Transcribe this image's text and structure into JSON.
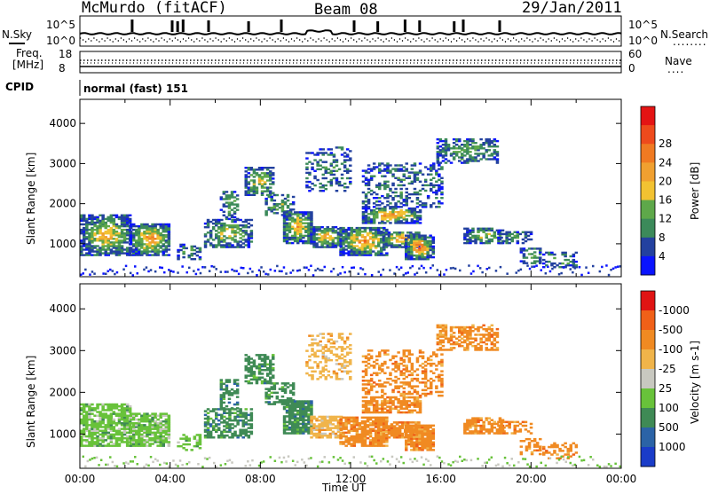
{
  "header": {
    "title_left": "McMurdo (fitACF)",
    "title_mid": "Beam 08",
    "title_right": "29/Jan/2011"
  },
  "noise_panel": {
    "left_label": "N.Sky",
    "right_label": "N.Search",
    "left_ticks": [
      "10^5",
      "10^0"
    ],
    "right_ticks": [
      "10^5",
      "10^0"
    ],
    "right_legend": "........"
  },
  "freq_panel": {
    "left_label_line1": "Freq.",
    "left_label_line2": "[MHz]",
    "left_ticks": [
      "18",
      "8"
    ],
    "right_label": "Nave",
    "right_ticks": [
      "60",
      "0"
    ],
    "right_legend": "...."
  },
  "cpid": {
    "label": "CPID",
    "value": "normal (fast) 151"
  },
  "chart_data": [
    {
      "type": "heatmap",
      "name": "power",
      "ylabel": "Slant Range [km]",
      "yticks": [
        1000,
        2000,
        3000,
        4000
      ],
      "ylim": [
        180,
        4600
      ],
      "xlim_hours": [
        0,
        24
      ],
      "colorbar_label": "Power [dB]",
      "colorbar_ticks": [
        "4",
        "8",
        "12",
        "16",
        "20",
        "24",
        "28"
      ],
      "colorbar_colors": [
        "#0a14ff",
        "#23419f",
        "#3c8a5a",
        "#5ea84a",
        "#f2c232",
        "#f0a030",
        "#f07a22",
        "#ee4a1c",
        "#e41414"
      ]
    },
    {
      "type": "heatmap",
      "name": "velocity",
      "ylabel": "Slant Range [km]",
      "yticks": [
        1000,
        2000,
        3000,
        4000
      ],
      "ylim": [
        180,
        4600
      ],
      "xlim_hours": [
        0,
        24
      ],
      "xlabel": "Time UT",
      "xticks": [
        "00:00",
        "04:00",
        "08:00",
        "12:00",
        "16:00",
        "20:00",
        "00:00"
      ],
      "colorbar_label": "Velocity [m s-1]",
      "colorbar_ticks": [
        "1000",
        "500",
        "100",
        "25",
        "-25",
        "-100",
        "-500",
        "-1000"
      ],
      "colorbar_colors": [
        "#1a3cc8",
        "#2b63a6",
        "#3f8a55",
        "#68c23a",
        "#c8c8c0",
        "#f0b44a",
        "#f08a22",
        "#f06018",
        "#e01414"
      ]
    }
  ]
}
